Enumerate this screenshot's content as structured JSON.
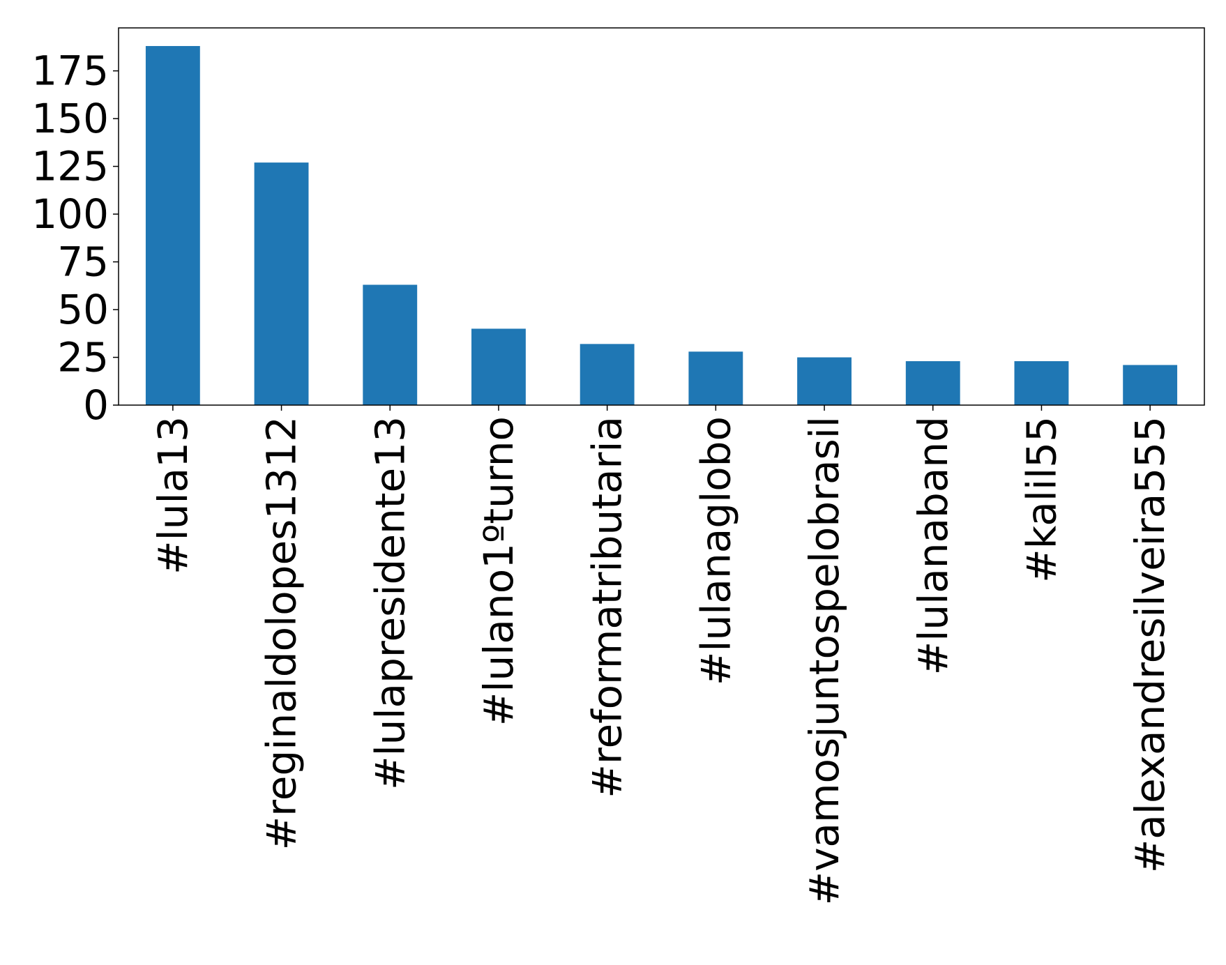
{
  "chart_data": {
    "type": "bar",
    "title": "",
    "xlabel": "",
    "ylabel": "",
    "categories": [
      "#lula13",
      "#reginaldolopes1312",
      "#lulapresidente13",
      "#lulano1ºturno",
      "#reformatributaria",
      "#lulanaglobo",
      "#vamosjuntospelobrasil",
      "#lulanaband",
      "#kalil55",
      "#alexandresilveira555"
    ],
    "values": [
      188,
      127,
      63,
      40,
      32,
      28,
      25,
      23,
      23,
      21
    ],
    "ylim": [
      0,
      197.5
    ],
    "yticks": [
      0,
      25,
      50,
      75,
      100,
      125,
      150,
      175
    ],
    "ytick_labels": [
      "0",
      "25",
      "50",
      "75",
      "100",
      "125",
      "150",
      "175"
    ],
    "bar_color": "#1f77b4",
    "grid": false,
    "legend": "none"
  }
}
